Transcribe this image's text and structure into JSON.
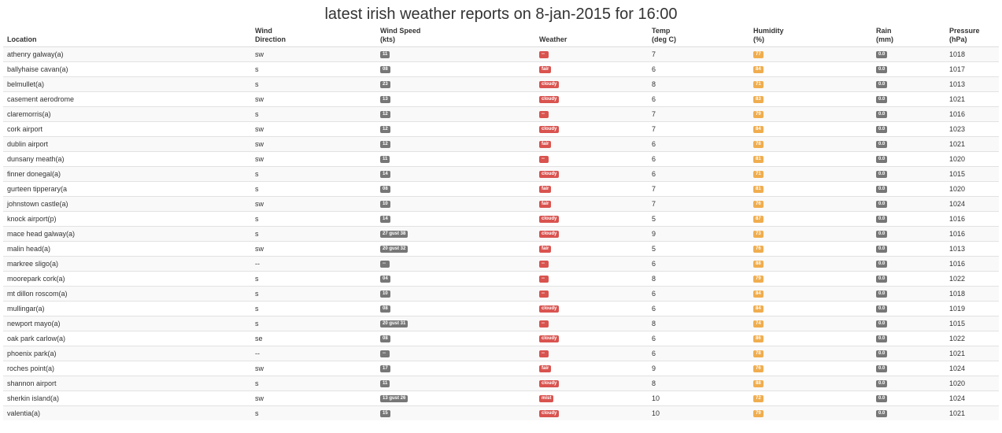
{
  "page_title": "latest irish weather reports on 8-jan-2015 for 16:00",
  "columns": {
    "location": "Location",
    "wind_dir": [
      "Wind",
      "Direction"
    ],
    "wind_speed": [
      "Wind Speed",
      "(kts)"
    ],
    "weather": "Weather",
    "temp": [
      "Temp",
      "(deg C)"
    ],
    "humidity": [
      "Humidity",
      "(%)"
    ],
    "rain": [
      "Rain",
      "(mm)"
    ],
    "pressure": [
      "Pressure",
      "(hPa)"
    ]
  },
  "colors": {
    "wind_badge": "#777777",
    "weather_badge": "#d9534f",
    "humidity_badge": "#f0ad4e",
    "rain_badge": "#777777"
  },
  "rows": [
    {
      "location": "athenry galway(a)",
      "wind_dir": "sw",
      "wind_speed": "11",
      "weather": "--",
      "temp": "7",
      "humidity": "77",
      "rain": "0.0",
      "pressure": "1018"
    },
    {
      "location": "ballyhaise cavan(a)",
      "wind_dir": "s",
      "wind_speed": "08",
      "weather": "fair",
      "temp": "6",
      "humidity": "84",
      "rain": "0.0",
      "pressure": "1017"
    },
    {
      "location": "belmullet(a)",
      "wind_dir": "s",
      "wind_speed": "23",
      "weather": "cloudy",
      "temp": "8",
      "humidity": "71",
      "rain": "0.0",
      "pressure": "1013"
    },
    {
      "location": "casement aerodrome",
      "wind_dir": "sw",
      "wind_speed": "13",
      "weather": "cloudy",
      "temp": "6",
      "humidity": "83",
      "rain": "0.0",
      "pressure": "1021"
    },
    {
      "location": "claremorris(a)",
      "wind_dir": "s",
      "wind_speed": "12",
      "weather": "--",
      "temp": "7",
      "humidity": "79",
      "rain": "0.0",
      "pressure": "1016"
    },
    {
      "location": "cork airport",
      "wind_dir": "sw",
      "wind_speed": "12",
      "weather": "cloudy",
      "temp": "7",
      "humidity": "84",
      "rain": "0.0",
      "pressure": "1023"
    },
    {
      "location": "dublin airport",
      "wind_dir": "sw",
      "wind_speed": "12",
      "weather": "fair",
      "temp": "6",
      "humidity": "78",
      "rain": "0.0",
      "pressure": "1021"
    },
    {
      "location": "dunsany meath(a)",
      "wind_dir": "sw",
      "wind_speed": "11",
      "weather": "--",
      "temp": "6",
      "humidity": "81",
      "rain": "0.0",
      "pressure": "1020"
    },
    {
      "location": "finner donegal(a)",
      "wind_dir": "s",
      "wind_speed": "14",
      "weather": "cloudy",
      "temp": "6",
      "humidity": "71",
      "rain": "0.0",
      "pressure": "1015"
    },
    {
      "location": "gurteen tipperary(a",
      "wind_dir": "s",
      "wind_speed": "08",
      "weather": "fair",
      "temp": "7",
      "humidity": "81",
      "rain": "0.0",
      "pressure": "1020"
    },
    {
      "location": "johnstown castle(a)",
      "wind_dir": "sw",
      "wind_speed": "10",
      "weather": "fair",
      "temp": "7",
      "humidity": "76",
      "rain": "0.0",
      "pressure": "1024"
    },
    {
      "location": "knock airport(p)",
      "wind_dir": "s",
      "wind_speed": "14",
      "weather": "cloudy",
      "temp": "5",
      "humidity": "87",
      "rain": "0.0",
      "pressure": "1016"
    },
    {
      "location": "mace head galway(a)",
      "wind_dir": "s",
      "wind_speed": "27 gust 38",
      "weather": "cloudy",
      "temp": "9",
      "humidity": "73",
      "rain": "0.0",
      "pressure": "1016"
    },
    {
      "location": "malin head(a)",
      "wind_dir": "sw",
      "wind_speed": "20 gust 32",
      "weather": "fair",
      "temp": "5",
      "humidity": "76",
      "rain": "0.0",
      "pressure": "1013"
    },
    {
      "location": "markree sligo(a)",
      "wind_dir": "--",
      "wind_speed": "--",
      "weather": "--",
      "temp": "6",
      "humidity": "88",
      "rain": "0.0",
      "pressure": "1016"
    },
    {
      "location": "moorepark cork(a)",
      "wind_dir": "s",
      "wind_speed": "04",
      "weather": "--",
      "temp": "8",
      "humidity": "79",
      "rain": "0.0",
      "pressure": "1022"
    },
    {
      "location": "mt dillon roscom(a)",
      "wind_dir": "s",
      "wind_speed": "10",
      "weather": "--",
      "temp": "6",
      "humidity": "84",
      "rain": "0.0",
      "pressure": "1018"
    },
    {
      "location": "mullingar(a)",
      "wind_dir": "s",
      "wind_speed": "08",
      "weather": "cloudy",
      "temp": "6",
      "humidity": "84",
      "rain": "0.0",
      "pressure": "1019"
    },
    {
      "location": "newport mayo(a)",
      "wind_dir": "s",
      "wind_speed": "20 gust 31",
      "weather": "--",
      "temp": "8",
      "humidity": "74",
      "rain": "0.0",
      "pressure": "1015"
    },
    {
      "location": "oak park carlow(a)",
      "wind_dir": "se",
      "wind_speed": "08",
      "weather": "cloudy",
      "temp": "6",
      "humidity": "86",
      "rain": "0.0",
      "pressure": "1022"
    },
    {
      "location": "phoenix park(a)",
      "wind_dir": "--",
      "wind_speed": "--",
      "weather": "--",
      "temp": "6",
      "humidity": "78",
      "rain": "0.0",
      "pressure": "1021"
    },
    {
      "location": "roches point(a)",
      "wind_dir": "sw",
      "wind_speed": "17",
      "weather": "fair",
      "temp": "9",
      "humidity": "76",
      "rain": "0.0",
      "pressure": "1024"
    },
    {
      "location": "shannon airport",
      "wind_dir": "s",
      "wind_speed": "11",
      "weather": "cloudy",
      "temp": "8",
      "humidity": "88",
      "rain": "0.0",
      "pressure": "1020"
    },
    {
      "location": "sherkin island(a)",
      "wind_dir": "sw",
      "wind_speed": "13 gust 26",
      "weather": "mist",
      "temp": "10",
      "humidity": "72",
      "rain": "0.0",
      "pressure": "1024"
    },
    {
      "location": "valentia(a)",
      "wind_dir": "s",
      "wind_speed": "15",
      "weather": "cloudy",
      "temp": "10",
      "humidity": "79",
      "rain": "0.0",
      "pressure": "1021"
    }
  ]
}
